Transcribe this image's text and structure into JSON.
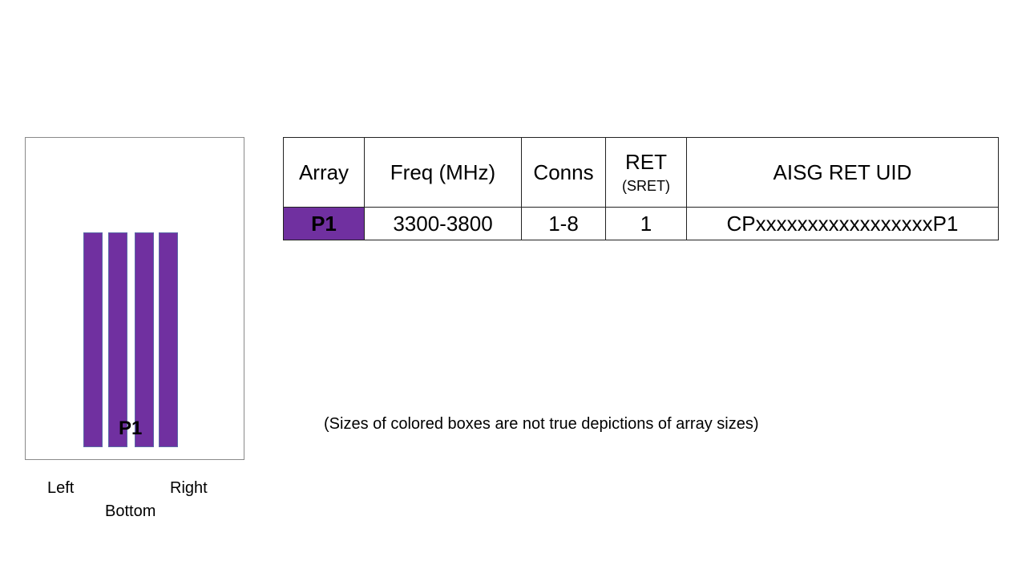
{
  "diagram": {
    "array_label": "P1",
    "bar_count": 4,
    "bar_color": "#7030a0",
    "labels": {
      "left": "Left",
      "right": "Right",
      "bottom": "Bottom"
    }
  },
  "table": {
    "headers": {
      "array": "Array",
      "freq": "Freq (MHz)",
      "conns": "Conns",
      "ret": "RET",
      "ret_sub": "(SRET)",
      "uid": "AISG RET UID"
    },
    "rows": [
      {
        "array": "P1",
        "freq": "3300-3800",
        "conns": "1-8",
        "ret": "1",
        "uid": "CPxxxxxxxxxxxxxxxxxP1",
        "color": "#7030a0"
      }
    ]
  },
  "note": "(Sizes of colored boxes are not true depictions of array sizes)"
}
